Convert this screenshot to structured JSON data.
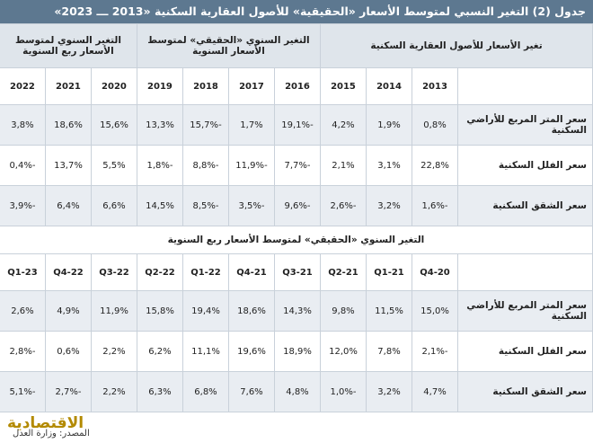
{
  "title": "جدول (2) التغير النسبي لمتوسط الأسعار «الحقيقية» للأصول العقارية السكنية «2013 ـــ 2023»",
  "annual": {
    "group_headers": [
      "تغير الأسعار للأصول العقارية السكنية",
      "التغير السنوي «الحقيقي» لمتوسط الأسعار السنوية",
      "التغير السنوي لمتوسط الأسعار ربع السنوية"
    ],
    "columns": [
      "2013",
      "2014",
      "2015",
      "2016",
      "2017",
      "2018",
      "2019",
      "2020",
      "2021",
      "2022"
    ],
    "rows": [
      {
        "label": "سعر المتر المربع للأراضي السكنية",
        "values": [
          "0,8%",
          "1,9%",
          "4,2%",
          "-19,1%",
          "1,7%",
          "-15,7%",
          "13,3%",
          "15,6%",
          "18,6%",
          "3,8%"
        ]
      },
      {
        "label": "سعر الفلل السكنية",
        "values": [
          "22,8%",
          "3,1%",
          "2,1%",
          "-7,7%",
          "-11,9%",
          "-8,8%",
          "-1,8%",
          "5,5%",
          "13,7%",
          "-0,4%"
        ]
      },
      {
        "label": "سعر الشقق السكنية",
        "values": [
          "-1,6%",
          "3,2%",
          "-2,6%",
          "-9,6%",
          "-3,5%",
          "-8,5%",
          "14,5%",
          "6,6%",
          "6,4%",
          "-3,9%"
        ]
      }
    ]
  },
  "quarterly": {
    "heading": "التغير السنوي «الحقيقي» لمتوسط الأسعار ربع السنوية",
    "columns": [
      "Q4-20",
      "Q1-21",
      "Q2-21",
      "21-Q3",
      "21-Q4",
      "22-Q1",
      "Q2-22",
      "Q3-22",
      "Q4-22",
      "Q1-23"
    ],
    "rows": [
      {
        "label": "سعر المتر المربع للأراضي السكنية",
        "values": [
          "15,0%",
          "11,5%",
          "9,8%",
          "14,3%",
          "18,6%",
          "19,4%",
          "15,8%",
          "11,9%",
          "4,9%",
          "2,6%"
        ]
      },
      {
        "label": "سعر الفلل السكنية",
        "values": [
          "-2,1%",
          "7,8%",
          "12,0%",
          "18,9%",
          "19,6%",
          "11,1%",
          "6,2%",
          "2,2%",
          "0,6%",
          "-2,8%"
        ]
      },
      {
        "label": "سعر الشقق السكنية",
        "values": [
          "4,7%",
          "3,2%",
          "-1,0%",
          "4,8%",
          "7,6%",
          "6,8%",
          "6,3%",
          "2,2%",
          "-2,7%",
          "-5,1%"
        ]
      }
    ]
  },
  "footer": {
    "source": "المصدر: وزارة العدل",
    "logo": "الاقتصادية"
  }
}
